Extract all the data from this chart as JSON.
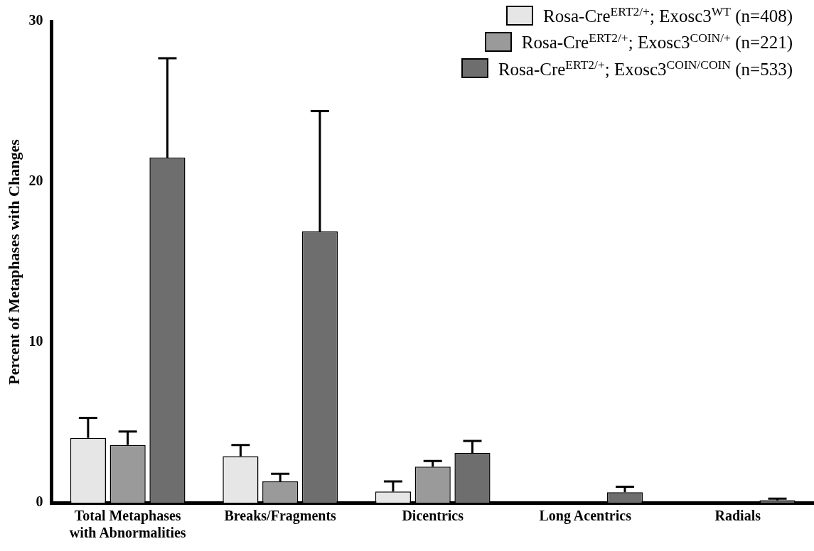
{
  "chart_data": {
    "type": "bar",
    "ylabel": "Percent of Metaphases with Changes",
    "categories": [
      "Total Metaphases with Abnormalities",
      "Breaks/Fragments",
      "Dicentrics",
      "Long Acentrics",
      "Radials"
    ],
    "series": [
      {
        "name": "Rosa-Cre$^{ERT2/+}$; Exosc3$^{WT}$ (n=408)",
        "color": "#e6e6e6",
        "values": [
          4.04,
          2.9,
          0.7,
          0,
          0
        ],
        "errors": [
          [
            4.04,
            5.29
          ],
          [
            2.9,
            3.6
          ],
          [
            0.7,
            1.33
          ],
          null,
          null
        ]
      },
      {
        "name": "Rosa-Cre$^{ERT2/+}$; Exosc3$^{COIN/+}$ (n=221)",
        "color": "#9a9a9a",
        "values": [
          3.6,
          1.33,
          2.25,
          0,
          0
        ],
        "errors": [
          [
            3.6,
            4.44
          ],
          [
            1.33,
            1.8
          ],
          [
            2.25,
            2.6
          ],
          null,
          null
        ]
      },
      {
        "name": "Rosa-Cre$^{ERT2/+}$; Exosc3$^{COIN/COIN}$ (n=533)",
        "color": "#6e6e6e",
        "values": [
          21.5,
          16.9,
          3.1,
          0.65,
          0.15
        ],
        "errors": [
          [
            21.5,
            27.7
          ],
          [
            16.9,
            24.4
          ],
          [
            3.1,
            3.85
          ],
          [
            0.65,
            1.0
          ],
          [
            0.15,
            0.25
          ]
        ]
      }
    ],
    "ylim": [
      0,
      30
    ],
    "yticks": [
      0,
      10,
      20,
      30
    ],
    "grid": false,
    "legend": "top right"
  }
}
